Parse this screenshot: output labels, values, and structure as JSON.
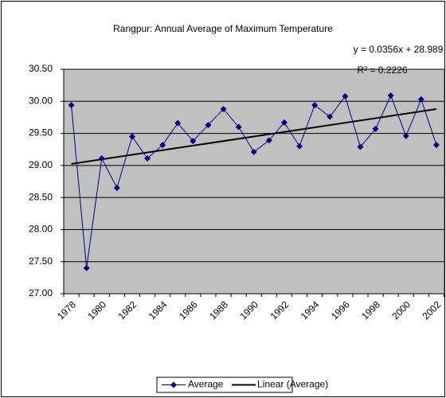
{
  "chart_data": {
    "type": "line",
    "title": "Rangpur: Annual Average of Maximum Temperature",
    "categories": [
      "1978",
      null,
      "1980",
      null,
      "1982",
      null,
      "1984",
      null,
      "1986",
      null,
      "1988",
      null,
      "1990",
      null,
      "1992",
      null,
      "1994",
      null,
      "1996",
      null,
      "1998",
      null,
      "2000",
      null,
      "2002"
    ],
    "series": [
      {
        "name": "Average",
        "color": "#000080",
        "values": [
          29.94,
          27.4,
          29.11,
          28.65,
          29.45,
          29.11,
          29.32,
          29.66,
          29.38,
          29.63,
          29.88,
          29.6,
          29.21,
          29.39,
          29.67,
          29.3,
          29.94,
          29.76,
          30.08,
          29.29,
          29.57,
          30.09,
          29.46,
          30.03,
          29.32
        ]
      }
    ],
    "trendline": {
      "name": "Linear (Average)",
      "color": "#000000",
      "slope": 0.0356,
      "intercept": 28.989,
      "equation": "y = 0.0356x + 28.989",
      "r_squared": "R² = 0.2226"
    },
    "ylim": [
      27,
      30.5
    ],
    "yticks": [
      {
        "value": 27,
        "label": "27.00"
      },
      {
        "value": 27.5,
        "label": "27.50"
      },
      {
        "value": 28,
        "label": "28.00"
      },
      {
        "value": 28.5,
        "label": "28.50"
      },
      {
        "value": 29,
        "label": "29.00"
      },
      {
        "value": 29.5,
        "label": "29.50"
      },
      {
        "value": 30,
        "label": "30.00"
      },
      {
        "value": 30.5,
        "label": "30.50"
      }
    ],
    "grid": true,
    "plot_background": "#c0c0c0",
    "legend": "bottom"
  }
}
